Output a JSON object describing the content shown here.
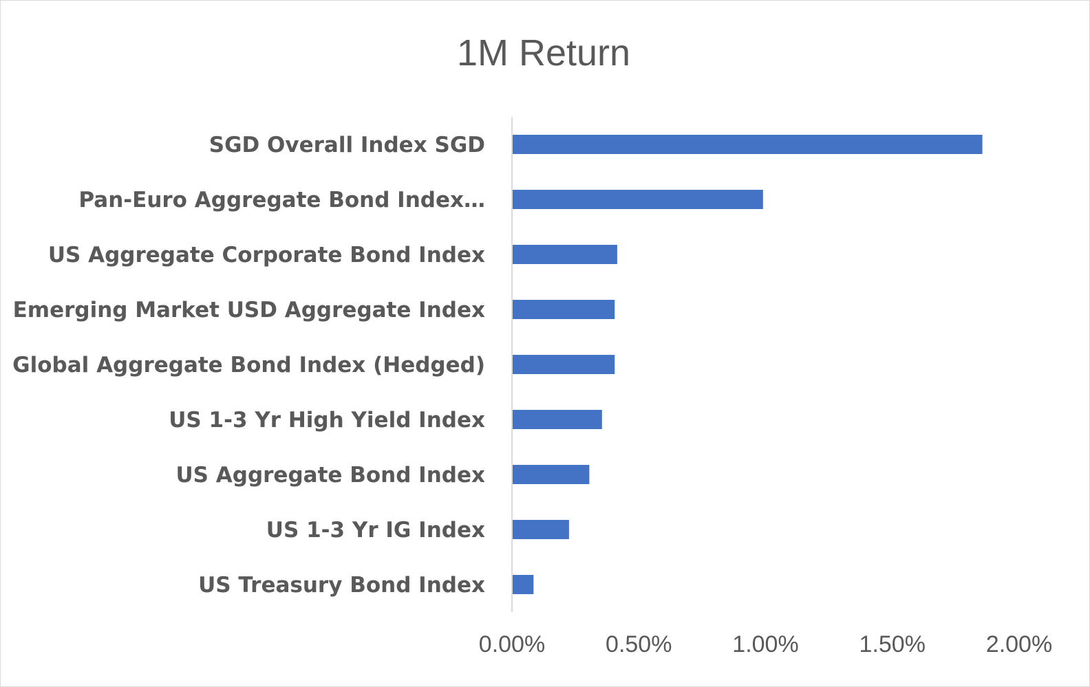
{
  "chart_data": {
    "type": "bar",
    "orientation": "horizontal",
    "title": "1M Return",
    "categories": [
      "SGD Overall Index SGD",
      "Pan-Euro Aggregate Bond Index…",
      "US Aggregate Corporate Bond Index",
      "Emerging Market USD Aggregate Index",
      "Global Aggregate Bond Index (Hedged)",
      "US 1-3 Yr High Yield Index",
      "US Aggregate Bond Index",
      "US 1-3 Yr IG Index",
      "US Treasury Bond Index"
    ],
    "values": [
      0.01855,
      0.0099,
      0.00415,
      0.00405,
      0.00405,
      0.00355,
      0.00305,
      0.00225,
      0.00085
    ],
    "xlim": [
      0,
      0.02
    ],
    "x_ticks": [
      0,
      0.005,
      0.01,
      0.015,
      0.02
    ],
    "x_tick_labels": [
      "0.00%",
      "0.50%",
      "1.00%",
      "1.50%",
      "2.00%"
    ],
    "xlabel": "",
    "ylabel": "",
    "grid": false,
    "legend": "none",
    "bar_color": "#4472C4",
    "axis_color": "#d9d9d9",
    "text_color": "#595959"
  }
}
